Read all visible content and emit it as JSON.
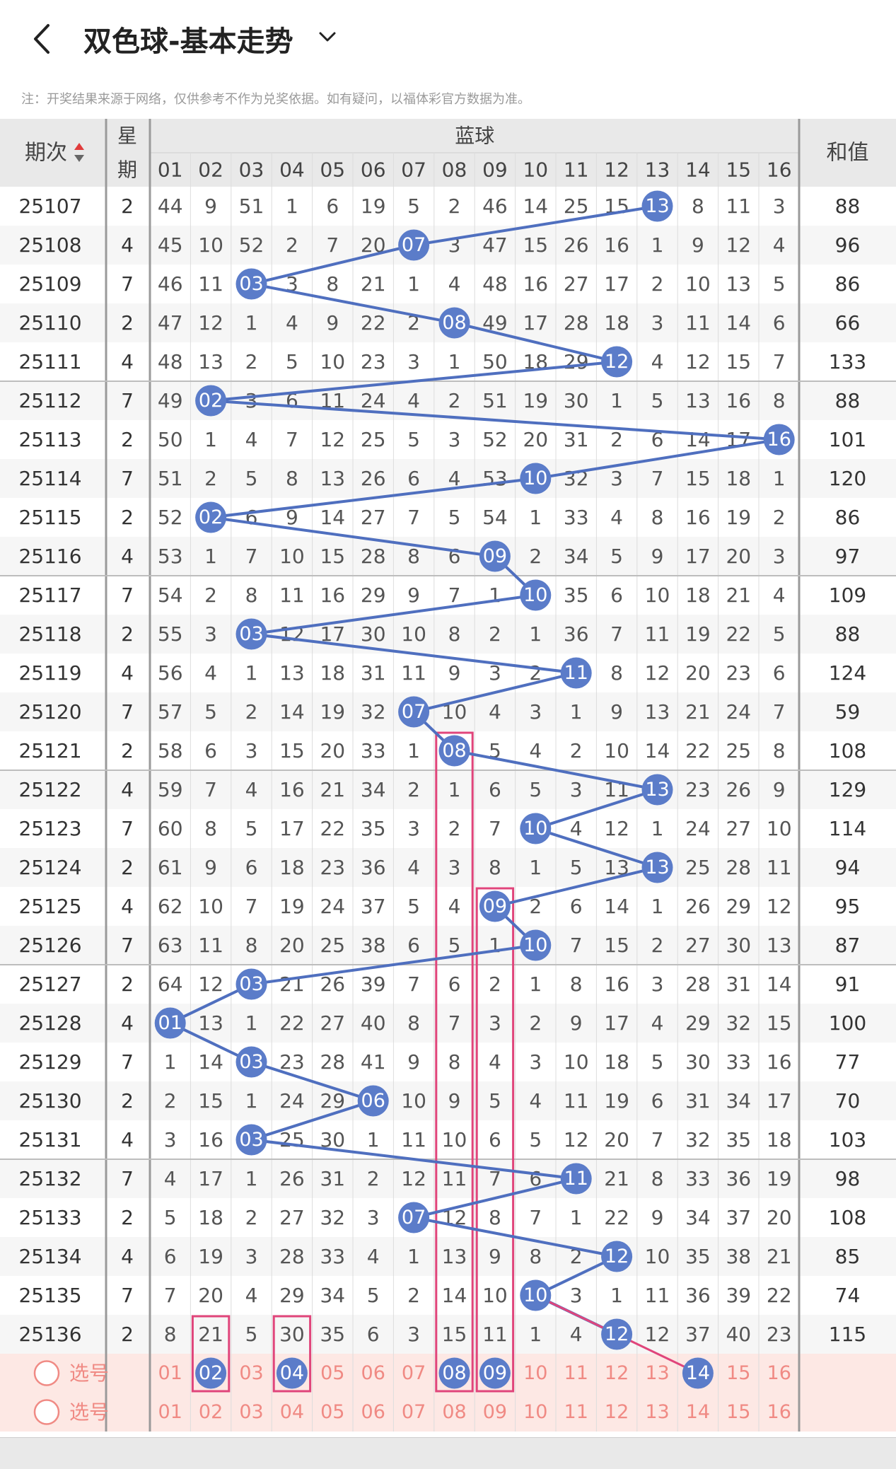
{
  "header": {
    "title": "双色球-基本走势",
    "notice": "注：开奖结果来源于网络，仅供参考不作为兑奖依据。如有疑问，以福体彩官方数据为准。"
  },
  "table": {
    "col_period": "期次",
    "col_weekday_top": "星",
    "col_weekday_bottom": "期",
    "col_blue": "蓝球",
    "col_sum": "和值",
    "numbers": [
      "01",
      "02",
      "03",
      "04",
      "05",
      "06",
      "07",
      "08",
      "09",
      "10",
      "11",
      "12",
      "13",
      "14",
      "15",
      "16"
    ],
    "rows": [
      {
        "period": "25107",
        "week": "2",
        "blue": 13,
        "sum": "88",
        "cells": [
          44,
          9,
          51,
          1,
          6,
          19,
          5,
          2,
          46,
          14,
          25,
          15,
          "13",
          8,
          11,
          3
        ]
      },
      {
        "period": "25108",
        "week": "4",
        "blue": 7,
        "sum": "96",
        "cells": [
          45,
          10,
          52,
          2,
          7,
          20,
          "07",
          3,
          47,
          15,
          26,
          16,
          1,
          9,
          12,
          4
        ]
      },
      {
        "period": "25109",
        "week": "7",
        "blue": 3,
        "sum": "86",
        "cells": [
          46,
          11,
          "03",
          3,
          8,
          21,
          1,
          4,
          48,
          16,
          27,
          17,
          2,
          10,
          13,
          5
        ]
      },
      {
        "period": "25110",
        "week": "2",
        "blue": 8,
        "sum": "66",
        "cells": [
          47,
          12,
          1,
          4,
          9,
          22,
          2,
          "08",
          49,
          17,
          28,
          18,
          3,
          11,
          14,
          6
        ]
      },
      {
        "period": "25111",
        "week": "4",
        "blue": 12,
        "sum": "133",
        "cells": [
          48,
          13,
          2,
          5,
          10,
          23,
          3,
          1,
          50,
          18,
          29,
          "12",
          4,
          12,
          15,
          7
        ]
      },
      {
        "period": "25112",
        "week": "7",
        "blue": 2,
        "sum": "88",
        "cells": [
          49,
          "02",
          3,
          6,
          11,
          24,
          4,
          2,
          51,
          19,
          30,
          1,
          5,
          13,
          16,
          8
        ]
      },
      {
        "period": "25113",
        "week": "2",
        "blue": 16,
        "sum": "101",
        "cells": [
          50,
          1,
          4,
          7,
          12,
          25,
          5,
          3,
          52,
          20,
          31,
          2,
          6,
          14,
          17,
          "16"
        ]
      },
      {
        "period": "25114",
        "week": "7",
        "blue": 10,
        "sum": "120",
        "cells": [
          51,
          2,
          5,
          8,
          13,
          26,
          6,
          4,
          53,
          "10",
          32,
          3,
          7,
          15,
          18,
          1
        ]
      },
      {
        "period": "25115",
        "week": "2",
        "blue": 2,
        "sum": "86",
        "cells": [
          52,
          "02",
          6,
          9,
          14,
          27,
          7,
          5,
          54,
          1,
          33,
          4,
          8,
          16,
          19,
          2
        ]
      },
      {
        "period": "25116",
        "week": "4",
        "blue": 9,
        "sum": "97",
        "cells": [
          53,
          1,
          7,
          10,
          15,
          28,
          8,
          6,
          "09",
          2,
          34,
          5,
          9,
          17,
          20,
          3
        ]
      },
      {
        "period": "25117",
        "week": "7",
        "blue": 10,
        "sum": "109",
        "cells": [
          54,
          2,
          8,
          11,
          16,
          29,
          9,
          7,
          1,
          "10",
          35,
          6,
          10,
          18,
          21,
          4
        ]
      },
      {
        "period": "25118",
        "week": "2",
        "blue": 3,
        "sum": "88",
        "cells": [
          55,
          3,
          "03",
          12,
          17,
          30,
          10,
          8,
          2,
          1,
          36,
          7,
          11,
          19,
          22,
          5
        ]
      },
      {
        "period": "25119",
        "week": "4",
        "blue": 11,
        "sum": "124",
        "cells": [
          56,
          4,
          1,
          13,
          18,
          31,
          11,
          9,
          3,
          2,
          "11",
          8,
          12,
          20,
          23,
          6
        ]
      },
      {
        "period": "25120",
        "week": "7",
        "blue": 7,
        "sum": "59",
        "cells": [
          57,
          5,
          2,
          14,
          19,
          32,
          "07",
          10,
          4,
          3,
          1,
          9,
          13,
          21,
          24,
          7
        ]
      },
      {
        "period": "25121",
        "week": "2",
        "blue": 8,
        "sum": "108",
        "cells": [
          58,
          6,
          3,
          15,
          20,
          33,
          1,
          "08",
          5,
          4,
          2,
          10,
          14,
          22,
          25,
          8
        ]
      },
      {
        "period": "25122",
        "week": "4",
        "blue": 13,
        "sum": "129",
        "cells": [
          59,
          7,
          4,
          16,
          21,
          34,
          2,
          1,
          6,
          5,
          3,
          11,
          "13",
          23,
          26,
          9
        ]
      },
      {
        "period": "25123",
        "week": "7",
        "blue": 10,
        "sum": "114",
        "cells": [
          60,
          8,
          5,
          17,
          22,
          35,
          3,
          2,
          7,
          "10",
          4,
          12,
          1,
          24,
          27,
          10
        ]
      },
      {
        "period": "25124",
        "week": "2",
        "blue": 13,
        "sum": "94",
        "cells": [
          61,
          9,
          6,
          18,
          23,
          36,
          4,
          3,
          8,
          1,
          5,
          13,
          "13",
          25,
          28,
          11
        ]
      },
      {
        "period": "25125",
        "week": "4",
        "blue": 9,
        "sum": "95",
        "cells": [
          62,
          10,
          7,
          19,
          24,
          37,
          5,
          4,
          "09",
          2,
          6,
          14,
          1,
          26,
          29,
          12
        ]
      },
      {
        "period": "25126",
        "week": "7",
        "blue": 10,
        "sum": "87",
        "cells": [
          63,
          11,
          8,
          20,
          25,
          38,
          6,
          5,
          1,
          "10",
          7,
          15,
          2,
          27,
          30,
          13
        ]
      },
      {
        "period": "25127",
        "week": "2",
        "blue": 3,
        "sum": "91",
        "cells": [
          64,
          12,
          "03",
          21,
          26,
          39,
          7,
          6,
          2,
          1,
          8,
          16,
          3,
          28,
          31,
          14
        ]
      },
      {
        "period": "25128",
        "week": "4",
        "blue": 1,
        "sum": "100",
        "cells": [
          "01",
          13,
          1,
          22,
          27,
          40,
          8,
          7,
          3,
          2,
          9,
          17,
          4,
          29,
          32,
          15
        ]
      },
      {
        "period": "25129",
        "week": "7",
        "blue": 3,
        "sum": "77",
        "cells": [
          1,
          14,
          "03",
          23,
          28,
          41,
          9,
          8,
          4,
          3,
          10,
          18,
          5,
          30,
          33,
          16
        ]
      },
      {
        "period": "25130",
        "week": "2",
        "blue": 6,
        "sum": "70",
        "cells": [
          2,
          15,
          1,
          24,
          29,
          "06",
          10,
          9,
          5,
          4,
          11,
          19,
          6,
          31,
          34,
          17
        ]
      },
      {
        "period": "25131",
        "week": "4",
        "blue": 3,
        "sum": "103",
        "cells": [
          3,
          16,
          "03",
          25,
          30,
          1,
          11,
          10,
          6,
          5,
          12,
          20,
          7,
          32,
          35,
          18
        ]
      },
      {
        "period": "25132",
        "week": "7",
        "blue": 11,
        "sum": "98",
        "cells": [
          4,
          17,
          1,
          26,
          31,
          2,
          12,
          11,
          7,
          6,
          "11",
          21,
          8,
          33,
          36,
          19
        ]
      },
      {
        "period": "25133",
        "week": "2",
        "blue": 7,
        "sum": "108",
        "cells": [
          5,
          18,
          2,
          27,
          32,
          3,
          "07",
          12,
          8,
          7,
          1,
          22,
          9,
          34,
          37,
          20
        ]
      },
      {
        "period": "25134",
        "week": "4",
        "blue": 12,
        "sum": "85",
        "cells": [
          6,
          19,
          3,
          28,
          33,
          4,
          1,
          13,
          9,
          8,
          2,
          "12",
          10,
          35,
          38,
          21
        ]
      },
      {
        "period": "25135",
        "week": "7",
        "blue": 10,
        "sum": "74",
        "cells": [
          7,
          20,
          4,
          29,
          34,
          5,
          2,
          14,
          10,
          "10",
          3,
          1,
          11,
          36,
          39,
          22
        ]
      },
      {
        "period": "25136",
        "week": "2",
        "blue": 12,
        "sum": "115",
        "cells": [
          8,
          21,
          5,
          30,
          35,
          6,
          3,
          15,
          11,
          1,
          4,
          "12",
          12,
          37,
          40,
          23
        ]
      }
    ],
    "pick_rows": [
      {
        "label": "选号",
        "selected": [
          2,
          4,
          8,
          9,
          14
        ]
      },
      {
        "label": "选号",
        "selected": []
      }
    ],
    "highlight_columns": [
      8,
      9
    ],
    "highlight_cells": [
      {
        "row": 29,
        "number": 2
      },
      {
        "row": 29,
        "number": 4
      }
    ],
    "colors": {
      "ball": "#5b7cc9",
      "line": "#4f6fbf",
      "prediction_line": "#e0457b",
      "highlight_box": "#e0457b",
      "pick_bg": "#fde8e4",
      "pick_text": "#f08a84",
      "header_bg": "#e9e9e9"
    }
  }
}
